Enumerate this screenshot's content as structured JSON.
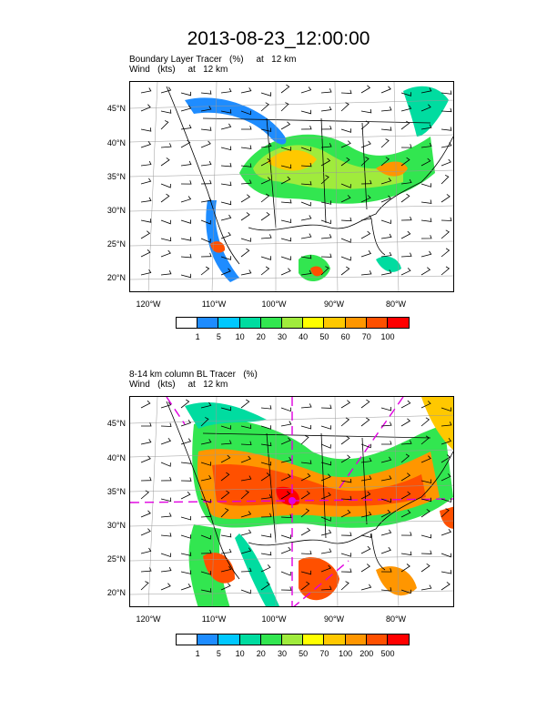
{
  "title": "2013-08-23_12:00:00",
  "panels": [
    {
      "subtitle_line1": "Boundary Layer Tracer   (%)     at   12 km",
      "subtitle_line2": "Wind   (kts)     at   12 km",
      "lat_labels": [
        "45°N",
        "40°N",
        "35°N",
        "30°N",
        "25°N",
        "20°N"
      ],
      "lon_labels": [
        "120°W",
        "110°W",
        "100°W",
        "90°W",
        "80°W"
      ],
      "colorbar_labels": [
        "1",
        "5",
        "10",
        "20",
        "30",
        "40",
        "50",
        "60",
        "70",
        "100"
      ],
      "colorbar_colors": [
        "#ffffff",
        "#1e8cff",
        "#00c8ff",
        "#00dca0",
        "#32e650",
        "#a0eb3c",
        "#ffff00",
        "#ffc800",
        "#ff9600",
        "#ff5000",
        "#ff0000"
      ]
    },
    {
      "subtitle_line1": "8-14 km column BL Tracer   (%)",
      "subtitle_line2": "Wind   (kts)     at   12 km",
      "lat_labels": [
        "45°N",
        "40°N",
        "35°N",
        "30°N",
        "25°N",
        "20°N"
      ],
      "lon_labels": [
        "120°W",
        "110°W",
        "100°W",
        "90°W",
        "80°W"
      ],
      "colorbar_labels": [
        "1",
        "5",
        "10",
        "20",
        "30",
        "50",
        "70",
        "100",
        "200",
        "500"
      ],
      "colorbar_colors": [
        "#ffffff",
        "#1e8cff",
        "#00c8ff",
        "#00dca0",
        "#32e650",
        "#a0eb3c",
        "#ffff00",
        "#ffc800",
        "#ff9600",
        "#ff5000",
        "#ff0000"
      ]
    }
  ]
}
